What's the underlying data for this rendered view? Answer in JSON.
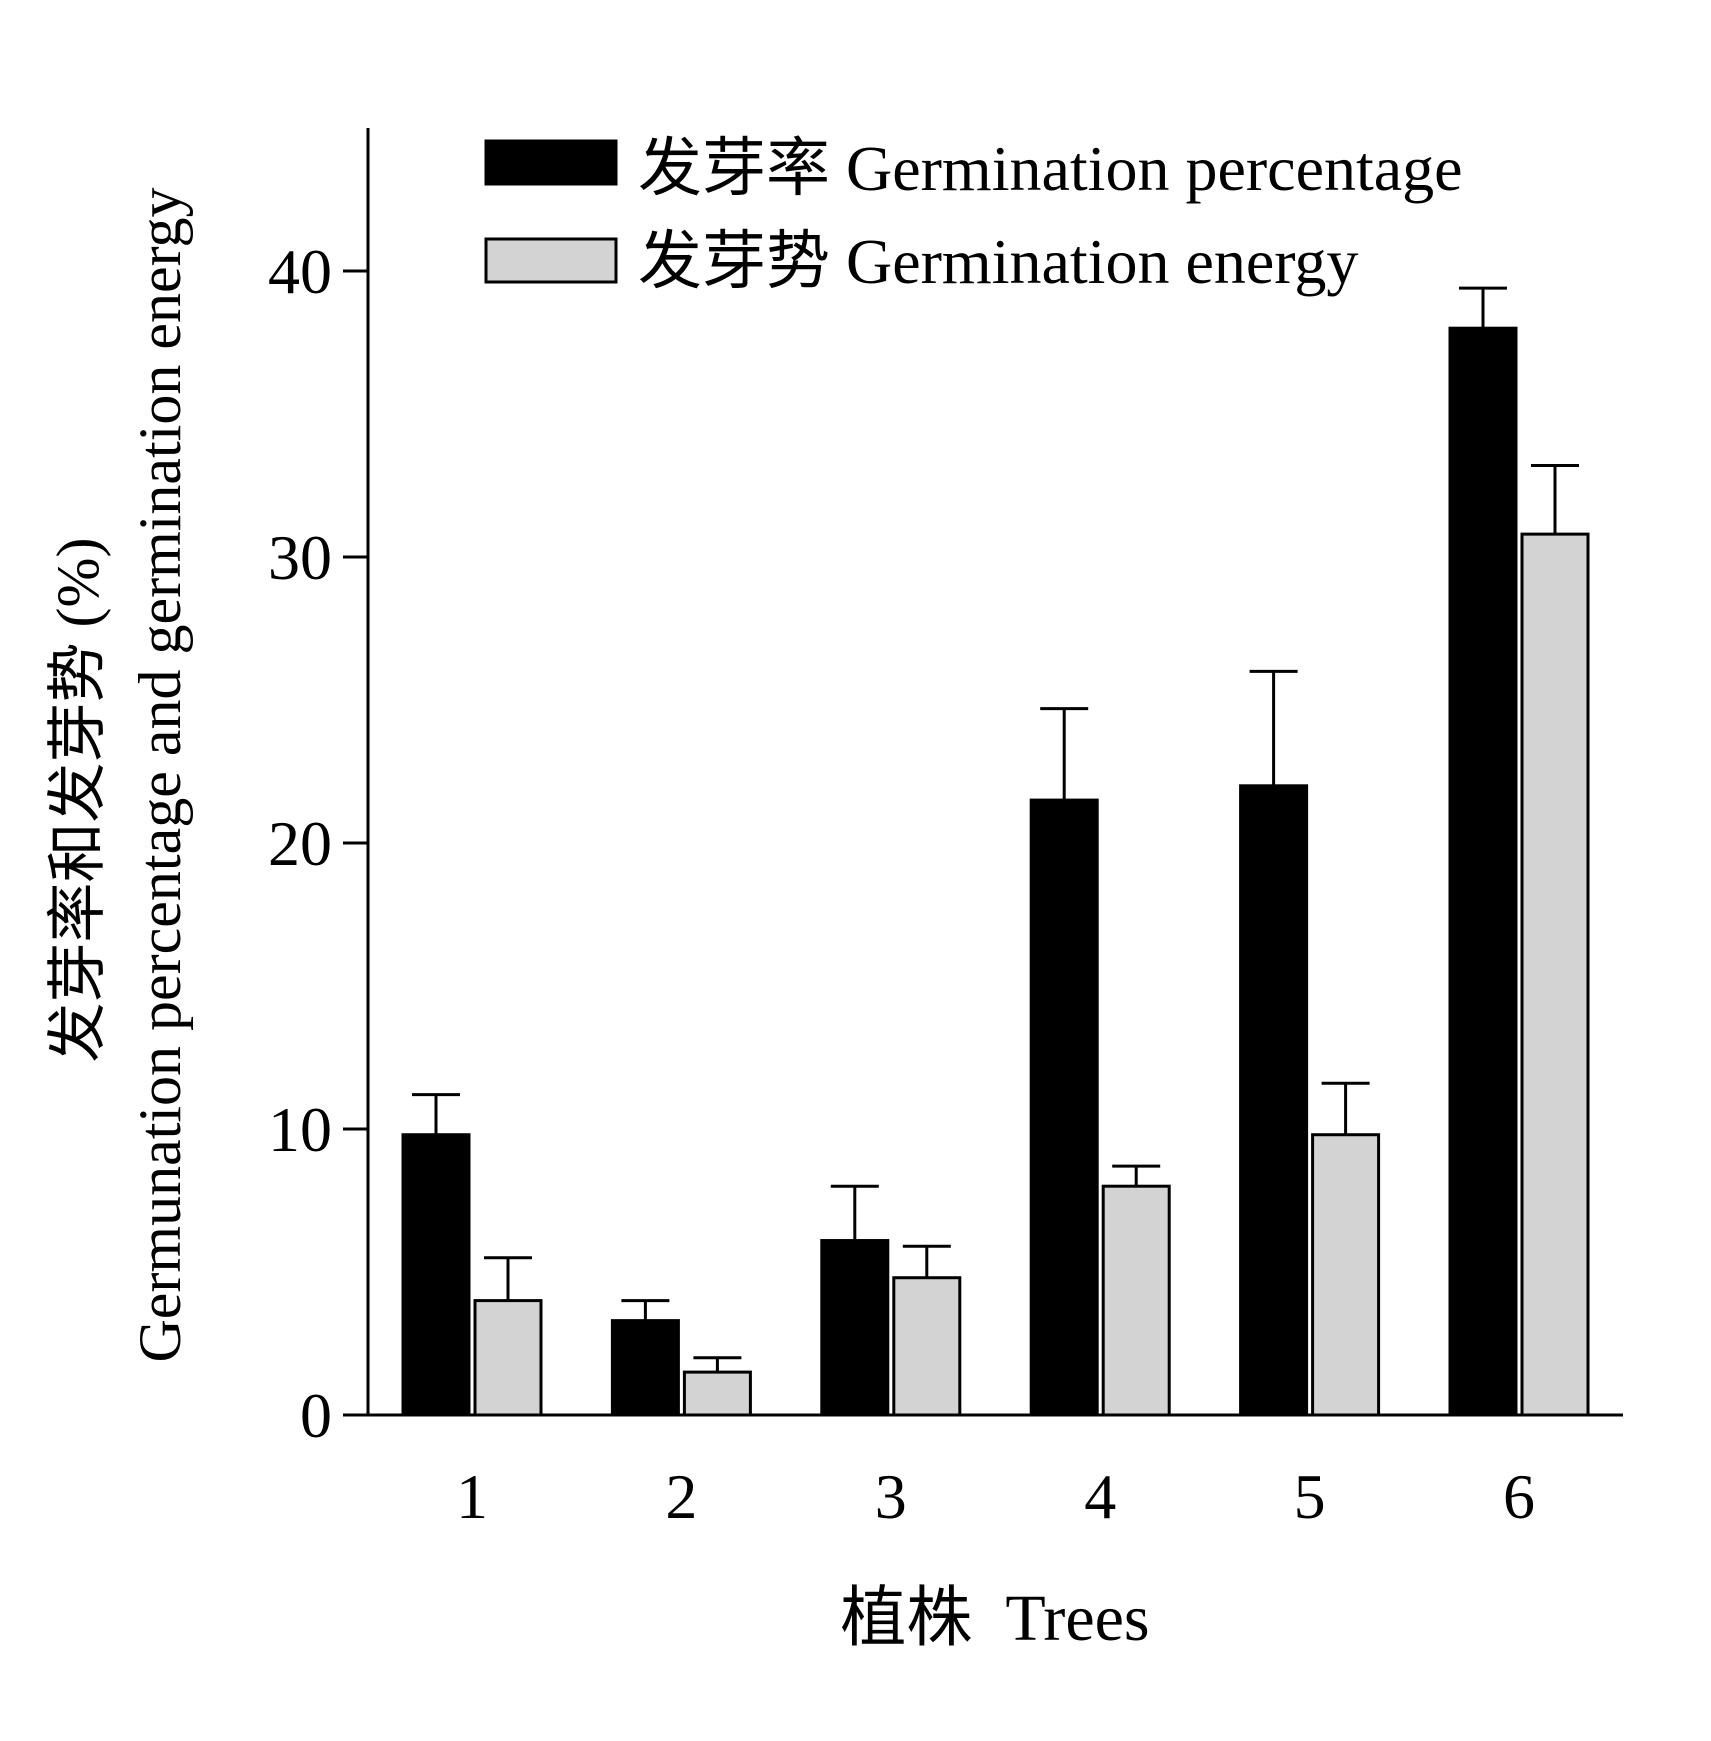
{
  "chart_data": {
    "type": "bar",
    "categories": [
      "1",
      "2",
      "3",
      "4",
      "5",
      "6"
    ],
    "series": [
      {
        "name": "发芽率 Germination percentage",
        "values": [
          9.8,
          3.3,
          6.1,
          21.5,
          22.0,
          38.0
        ],
        "errors": [
          1.4,
          0.7,
          1.9,
          3.2,
          4.0,
          1.4
        ],
        "color": "#000000"
      },
      {
        "name": "发芽势 Germination energy",
        "values": [
          4.0,
          1.5,
          4.8,
          8.0,
          9.8,
          30.8
        ],
        "errors": [
          1.5,
          0.5,
          1.1,
          0.7,
          1.8,
          2.4
        ],
        "color": "#d3d3d3"
      }
    ],
    "title": "",
    "xlabel": "植株  Trees",
    "ylabel_line1": "发芽率和发芽势 (%)",
    "ylabel_line2": "Germunation percentage and germination energy",
    "ylim": [
      0,
      45
    ],
    "yticks": [
      "0",
      "10",
      "20",
      "30",
      "40"
    ],
    "grid": false,
    "legend_position": "top"
  }
}
